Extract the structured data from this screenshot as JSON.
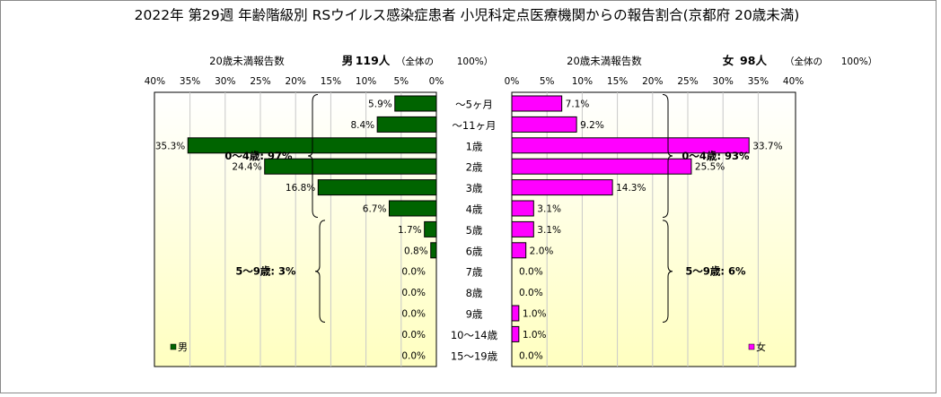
{
  "title": "2022年 第29週 年齢階級別 RSウイルス感染症患者 小児科定点医療機関からの報告割合(京都府 20歳未満)",
  "colors": {
    "male": "#006400",
    "female": "#ff00ff",
    "plot_bg_top": "#ffffff",
    "plot_bg_bottom": "#ffffc0",
    "grid": "#c8c8c8",
    "axis": "#000000"
  },
  "chart_data": [
    {
      "type": "bar",
      "orientation": "horizontal",
      "direction": "leftward",
      "panel": "male",
      "header": {
        "left": "20歳未満報告数",
        "sex": "男",
        "count": "119人",
        "note": "（全体の",
        "note_pct": "100%）"
      },
      "xlim": [
        0,
        40
      ],
      "ticks": [
        "40%",
        "35%",
        "30%",
        "25%",
        "20%",
        "15%",
        "10%",
        "5%",
        "0%"
      ],
      "tick_values": [
        40,
        35,
        30,
        25,
        20,
        15,
        10,
        5,
        0
      ],
      "categories": [
        "～5ヶ月",
        "～11ヶ月",
        "1歳",
        "2歳",
        "3歳",
        "4歳",
        "5歳",
        "6歳",
        "7歳",
        "8歳",
        "9歳",
        "10～14歳",
        "15～19歳"
      ],
      "values": [
        5.9,
        8.4,
        35.3,
        24.4,
        16.8,
        6.7,
        1.7,
        0.8,
        0.0,
        0.0,
        0.0,
        0.0,
        0.0
      ],
      "labels": [
        "5.9%",
        "8.4%",
        "35.3%",
        "24.4%",
        "16.8%",
        "6.7%",
        "1.7%",
        "0.8%",
        "0.0%",
        "0.0%",
        "0.0%",
        "0.0%",
        "0.0%"
      ],
      "group_annotations": [
        {
          "text": "0～4歳: 97%",
          "from": 0,
          "to": 5
        },
        {
          "text": "5～9歳: 3%",
          "from": 6,
          "to": 10
        }
      ],
      "legend": "男",
      "grid": true
    },
    {
      "type": "bar",
      "orientation": "horizontal",
      "direction": "rightward",
      "panel": "female",
      "header": {
        "left": "20歳未満報告数",
        "sex": "女",
        "count": "98人",
        "note": "（全体の",
        "note_pct": "100%）"
      },
      "xlim": [
        0,
        40
      ],
      "ticks": [
        "0%",
        "5%",
        "10%",
        "15%",
        "20%",
        "25%",
        "30%",
        "35%",
        "40%"
      ],
      "tick_values": [
        0,
        5,
        10,
        15,
        20,
        25,
        30,
        35,
        40
      ],
      "categories": [
        "～5ヶ月",
        "～11ヶ月",
        "1歳",
        "2歳",
        "3歳",
        "4歳",
        "5歳",
        "6歳",
        "7歳",
        "8歳",
        "9歳",
        "10～14歳",
        "15～19歳"
      ],
      "values": [
        7.1,
        9.2,
        33.7,
        25.5,
        14.3,
        3.1,
        3.1,
        2.0,
        0.0,
        0.0,
        1.0,
        1.0,
        0.0
      ],
      "labels": [
        "7.1%",
        "9.2%",
        "33.7%",
        "25.5%",
        "14.3%",
        "3.1%",
        "3.1%",
        "2.0%",
        "0.0%",
        "0.0%",
        "1.0%",
        "1.0%",
        "0.0%"
      ],
      "group_annotations": [
        {
          "text": "0～4歳: 93%",
          "from": 0,
          "to": 5
        },
        {
          "text": "5～9歳: 6%",
          "from": 6,
          "to": 10
        }
      ],
      "legend": "女",
      "grid": true
    }
  ]
}
